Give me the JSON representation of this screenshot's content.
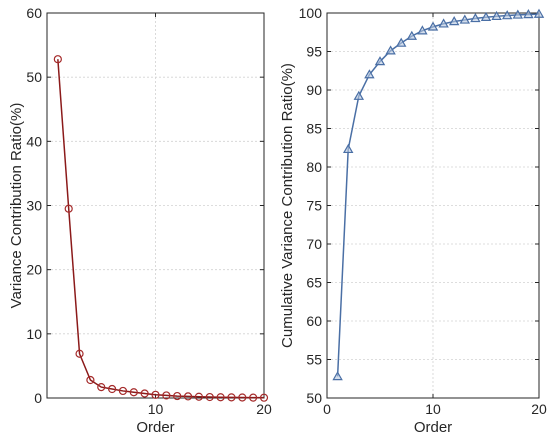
{
  "chart_data": [
    {
      "type": "line",
      "xlabel": "Order",
      "ylabel": "Variance Contribution Ratio(%)",
      "xlim": [
        0,
        20
      ],
      "ylim": [
        0,
        60
      ],
      "xticks": [
        "10",
        "20"
      ],
      "yticks": [
        "0",
        "10",
        "20",
        "30",
        "40",
        "50",
        "60"
      ],
      "grid": true,
      "marker": "circle",
      "colors": {
        "line": "#8b1a1a",
        "marker": "#a52a2a"
      },
      "series": [
        {
          "x": [
            1,
            2,
            3,
            4,
            5,
            6,
            7,
            8,
            9,
            10,
            11,
            12,
            13,
            14,
            15,
            16,
            17,
            18,
            19,
            20
          ],
          "values": [
            52.8,
            29.5,
            6.9,
            2.8,
            1.7,
            1.4,
            1.1,
            0.9,
            0.7,
            0.5,
            0.4,
            0.3,
            0.25,
            0.2,
            0.15,
            0.12,
            0.1,
            0.08,
            0.06,
            0.05
          ]
        }
      ]
    },
    {
      "type": "line",
      "xlabel": "Order",
      "ylabel": "Cumulative Variance Contribution Ratio(%)",
      "xlim": [
        0,
        20
      ],
      "ylim": [
        50,
        100
      ],
      "xticks": [
        "0",
        "10",
        "20"
      ],
      "yticks": [
        "50",
        "55",
        "60",
        "65",
        "70",
        "75",
        "80",
        "85",
        "90",
        "95",
        "100"
      ],
      "grid": true,
      "marker": "triangle",
      "colors": {
        "line": "#4a6fa5",
        "marker": "#4a6fa5"
      },
      "series": [
        {
          "x": [
            1,
            2,
            3,
            4,
            5,
            6,
            7,
            8,
            9,
            10,
            11,
            12,
            13,
            14,
            15,
            16,
            17,
            18,
            19,
            20
          ],
          "values": [
            52.8,
            82.3,
            89.2,
            92.0,
            93.7,
            95.1,
            96.1,
            97.0,
            97.7,
            98.2,
            98.6,
            98.9,
            99.1,
            99.3,
            99.45,
            99.57,
            99.67,
            99.75,
            99.81,
            99.86
          ]
        }
      ]
    }
  ]
}
